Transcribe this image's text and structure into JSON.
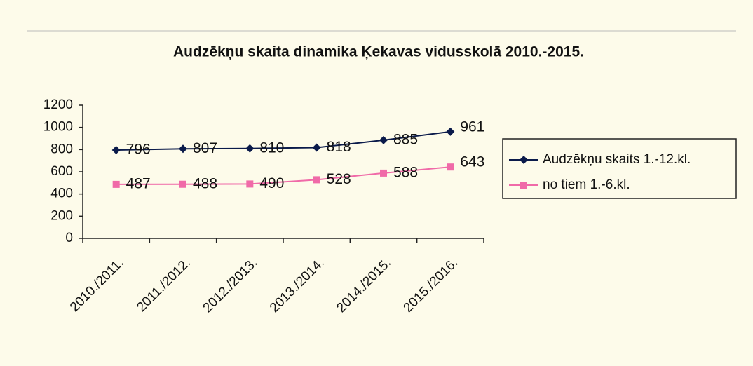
{
  "chart_data": {
    "type": "line",
    "title": "Audzēkņu skaita dinamika Ķekavas vidusskolā 2010.-2015.",
    "categories": [
      "2010./2011.",
      "2011./2012.",
      "2012./2013.",
      "2013./2014.",
      "2014./2015.",
      "2015./2016."
    ],
    "series": [
      {
        "name": "Audzēkņu skaits 1.-12.kl.",
        "color": "#0a1a4a",
        "marker": "diamond",
        "values": [
          796,
          807,
          810,
          818,
          885,
          961
        ]
      },
      {
        "name": "no tiem 1.-6.kl.",
        "color": "#f06aa8",
        "marker": "square",
        "values": [
          487,
          488,
          490,
          528,
          588,
          643
        ]
      }
    ],
    "ylim": [
      0,
      1200
    ],
    "yticks": [
      0,
      200,
      400,
      600,
      800,
      1000,
      1200
    ],
    "legend": "right",
    "data_labels": true
  }
}
